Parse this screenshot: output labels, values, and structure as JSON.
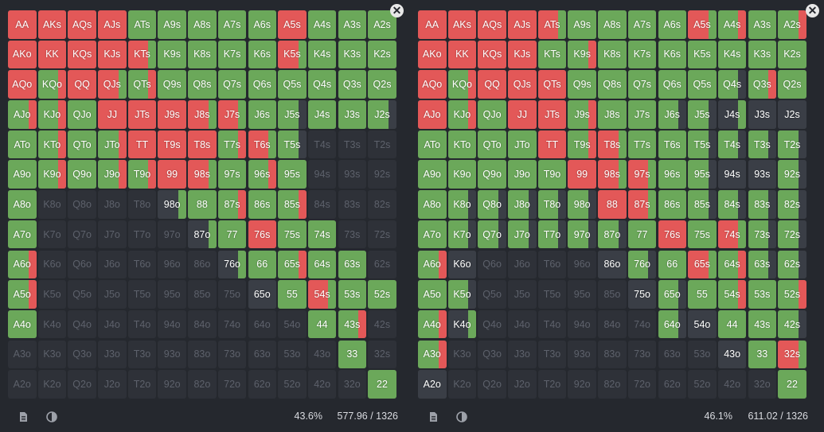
{
  "colors": {
    "raise": "#e35858",
    "call": "#6ba85a",
    "fold": "#3a3e46",
    "empty": "#2e3138"
  },
  "ranks": [
    "A",
    "K",
    "Q",
    "J",
    "T",
    "9",
    "8",
    "7",
    "6",
    "5",
    "4",
    "3",
    "2"
  ],
  "panels": [
    {
      "id": "left",
      "close_icon": "close-icon",
      "footer": {
        "icons": [
          "document-icon",
          "contrast-icon"
        ],
        "percent": "43.6%",
        "combos": "577.96 / 1326"
      },
      "cells": [
        [
          "r",
          "r",
          "r",
          "r",
          "c",
          "c",
          "c",
          "c",
          "c",
          "r",
          "c",
          "c",
          "c"
        ],
        [
          "r",
          "r",
          "r",
          "r",
          "rc",
          "c",
          "c",
          "c",
          "c",
          "rc",
          "c",
          "c",
          "c"
        ],
        [
          "r",
          "cr",
          "r",
          "rc",
          "cr",
          "c",
          "c",
          "c",
          "c",
          "c",
          "c",
          "c",
          "c"
        ],
        [
          "cr",
          "cr",
          "c",
          "r",
          "r",
          "r",
          "rc",
          "rc",
          "c",
          "cf",
          "c",
          "c",
          "cf"
        ],
        [
          "c",
          "cr",
          "c",
          "cr",
          "r",
          "r",
          "r",
          "cr",
          "rc",
          "cf",
          "x",
          "x",
          "x"
        ],
        [
          "c",
          "cr",
          "c",
          "cr",
          "cr",
          "r",
          "rc",
          "c",
          "cr",
          "c",
          "x",
          "x",
          "x"
        ],
        [
          "c",
          "x",
          "x",
          "x",
          "x",
          "fc",
          "c",
          "cr",
          "c",
          "cr",
          "x",
          "x",
          "x"
        ],
        [
          "c",
          "x",
          "x",
          "x",
          "x",
          "x",
          "fc",
          "c",
          "r",
          "c",
          "c",
          "x",
          "x"
        ],
        [
          "cr",
          "x",
          "x",
          "x",
          "x",
          "x",
          "x",
          "fc",
          "c",
          "cr",
          "c",
          "c",
          "x"
        ],
        [
          "cr",
          "x",
          "x",
          "x",
          "x",
          "x",
          "x",
          "x",
          "f",
          "c",
          "rc",
          "c",
          "c"
        ],
        [
          "c",
          "x",
          "x",
          "x",
          "x",
          "x",
          "x",
          "x",
          "x",
          "x",
          "c",
          "cr",
          "x"
        ],
        [
          "x",
          "x",
          "x",
          "x",
          "x",
          "x",
          "x",
          "x",
          "x",
          "x",
          "x",
          "c",
          "x"
        ],
        [
          "x",
          "x",
          "x",
          "x",
          "x",
          "x",
          "x",
          "x",
          "x",
          "x",
          "x",
          "x",
          "c"
        ]
      ]
    },
    {
      "id": "right",
      "close_icon": "close-icon",
      "footer": {
        "icons": [
          "document-icon",
          "contrast-icon"
        ],
        "percent": "46.1%",
        "combos": "611.02 / 1326"
      },
      "cells": [
        [
          "r",
          "r",
          "r",
          "r",
          "rc",
          "c",
          "c",
          "c",
          "c",
          "rc",
          "cr",
          "c",
          "cr"
        ],
        [
          "r",
          "r",
          "r",
          "r",
          "c",
          "cr",
          "c",
          "c",
          "c",
          "c",
          "c",
          "c",
          "c"
        ],
        [
          "r",
          "cr",
          "r",
          "r",
          "r",
          "c",
          "c",
          "c",
          "c",
          "c",
          "cf",
          "cr",
          "c"
        ],
        [
          "r",
          "cr",
          "c",
          "r",
          "r",
          "cr",
          "c",
          "c",
          "cf",
          "cf",
          "fc",
          "f",
          "f"
        ],
        [
          "c",
          "c",
          "c",
          "c",
          "r",
          "cr",
          "rc",
          "c",
          "c",
          "cf",
          "cf",
          "cf",
          "cf"
        ],
        [
          "c",
          "c",
          "c",
          "c",
          "c",
          "r",
          "rc",
          "rc",
          "c",
          "cf",
          "f",
          "f",
          "cf"
        ],
        [
          "c",
          "cf",
          "cf",
          "cf",
          "cf",
          "cf",
          "r",
          "rc",
          "c",
          "cf",
          "cf",
          "cf",
          "cf"
        ],
        [
          "c",
          "cf",
          "cf",
          "cf",
          "cf",
          "cf",
          "cf",
          "c",
          "r",
          "c",
          "rc",
          "cf",
          "cf"
        ],
        [
          "cr",
          "f",
          "x",
          "x",
          "x",
          "x",
          "f",
          "cf",
          "c",
          "rc",
          "cr",
          "cf",
          "cf"
        ],
        [
          "c",
          "cf",
          "x",
          "x",
          "x",
          "x",
          "x",
          "f",
          "cf",
          "c",
          "cr",
          "c",
          "cr"
        ],
        [
          "cr",
          "fc",
          "x",
          "x",
          "x",
          "x",
          "x",
          "x",
          "cf",
          "f",
          "c",
          "c",
          "cf"
        ],
        [
          "cr",
          "x",
          "x",
          "x",
          "x",
          "x",
          "x",
          "x",
          "x",
          "x",
          "f",
          "c",
          "rc"
        ],
        [
          "f",
          "x",
          "x",
          "x",
          "x",
          "x",
          "x",
          "x",
          "x",
          "x",
          "x",
          "x",
          "c"
        ]
      ]
    }
  ]
}
